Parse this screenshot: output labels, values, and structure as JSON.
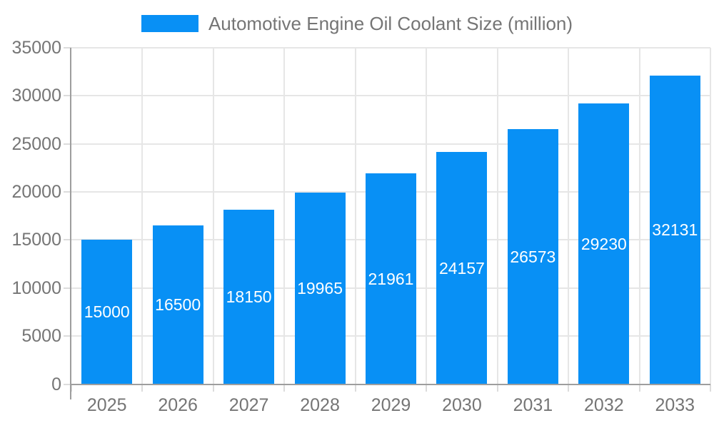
{
  "chart_data": {
    "type": "bar",
    "title": "Automotive Engine Oil Coolant Size (million)",
    "legend_position": "top",
    "categories": [
      "2025",
      "2026",
      "2027",
      "2028",
      "2029",
      "2030",
      "2031",
      "2032",
      "2033"
    ],
    "series": [
      {
        "name": "Automotive Engine Oil Coolant Size (million)",
        "values": [
          15000,
          16500,
          18150,
          19965,
          21961,
          24157,
          26573,
          29230,
          32131
        ]
      }
    ],
    "value_labels_shown": true,
    "xlabel": "",
    "ylabel": "",
    "ylim": [
      0,
      35000
    ],
    "ytick_interval": 5000,
    "yticks": [
      0,
      5000,
      10000,
      15000,
      20000,
      25000,
      30000,
      35000
    ],
    "grid": true,
    "colors": {
      "bar": "#0890f5",
      "bar_label_text": "#ffffff",
      "axis_text": "#757575",
      "grid_line": "#e6e6e6",
      "tick_line": "#dcdcdc",
      "axis_line": "#9e9e9e",
      "background": "#ffffff"
    }
  }
}
